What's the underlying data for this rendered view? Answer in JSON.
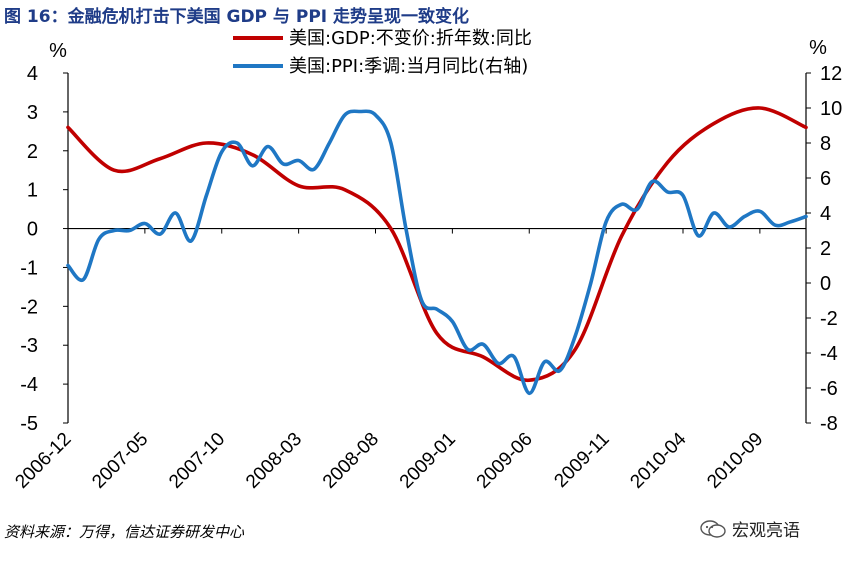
{
  "title": "图 16：金融危机打击下美国 GDP 与 PPI 走势呈现一致变化",
  "source": "资料来源：万得，信达证券研发中心",
  "brand": {
    "label": "宏观亮语",
    "icon": "wechat-icon"
  },
  "chart_data": {
    "type": "line",
    "title": "图 16：金融危机打击下美国 GDP 与 PPI 走势呈现一致变化",
    "y_left": {
      "unit": "%",
      "range": [
        -5,
        4
      ],
      "ticks": [
        "4",
        "3",
        "2",
        "1",
        "0",
        "-1",
        "-2",
        "-3",
        "-4",
        "-5"
      ]
    },
    "y_right": {
      "unit": "%",
      "range": [
        -8,
        12
      ],
      "ticks": [
        "12",
        "10",
        "8",
        "6",
        "4",
        "2",
        "0",
        "-2",
        "-4",
        "-6",
        "-8"
      ]
    },
    "x_tick_labels": [
      "2006-12",
      "2007-05",
      "2007-10",
      "2008-03",
      "2008-08",
      "2009-01",
      "2009-06",
      "2009-11",
      "2010-04",
      "2010-09"
    ],
    "legend_position": "top-center",
    "grid": false,
    "series": [
      {
        "name": "美国:GDP:不变价:折年数:同比",
        "axis": "left",
        "color": "#c00000",
        "x": [
          "2006-12",
          "2007-03",
          "2007-06",
          "2007-09",
          "2007-12",
          "2008-03",
          "2008-06",
          "2008-09",
          "2008-12",
          "2009-03",
          "2009-06",
          "2009-09",
          "2009-12",
          "2010-03",
          "2010-06",
          "2010-09",
          "2010-12"
        ],
        "values": [
          2.6,
          1.5,
          1.8,
          2.2,
          1.9,
          1.1,
          1.0,
          0.0,
          -2.7,
          -3.3,
          -3.9,
          -3.1,
          -0.2,
          1.7,
          2.7,
          3.1,
          2.6
        ]
      },
      {
        "name": "美国:PPI:季调:当月同比(右轴)",
        "axis": "right",
        "color": "#1f77c4",
        "x": [
          "2006-12",
          "2007-01",
          "2007-02",
          "2007-03",
          "2007-04",
          "2007-05",
          "2007-06",
          "2007-07",
          "2007-08",
          "2007-09",
          "2007-10",
          "2007-11",
          "2007-12",
          "2008-01",
          "2008-02",
          "2008-03",
          "2008-04",
          "2008-05",
          "2008-06",
          "2008-07",
          "2008-08",
          "2008-09",
          "2008-10",
          "2008-11",
          "2008-12",
          "2009-01",
          "2009-02",
          "2009-03",
          "2009-04",
          "2009-05",
          "2009-06",
          "2009-07",
          "2009-08",
          "2009-09",
          "2009-10",
          "2009-11",
          "2009-12",
          "2010-01",
          "2010-02",
          "2010-03",
          "2010-04",
          "2010-05",
          "2010-06",
          "2010-07",
          "2010-08",
          "2010-09",
          "2010-10",
          "2010-11",
          "2010-12"
        ],
        "values": [
          1.0,
          0.2,
          2.5,
          3.0,
          3.0,
          3.4,
          2.8,
          4.0,
          2.4,
          5.0,
          7.5,
          8.0,
          6.7,
          7.8,
          6.8,
          7.0,
          6.5,
          8.0,
          9.6,
          9.8,
          9.6,
          8.0,
          3.0,
          -1.0,
          -1.5,
          -2.2,
          -3.8,
          -3.5,
          -4.6,
          -4.2,
          -6.3,
          -4.5,
          -5.0,
          -3.0,
          0.0,
          3.5,
          4.5,
          4.2,
          5.8,
          5.2,
          5.0,
          2.7,
          4.0,
          3.2,
          3.8,
          4.1,
          3.3,
          3.5,
          3.8
        ]
      }
    ]
  }
}
